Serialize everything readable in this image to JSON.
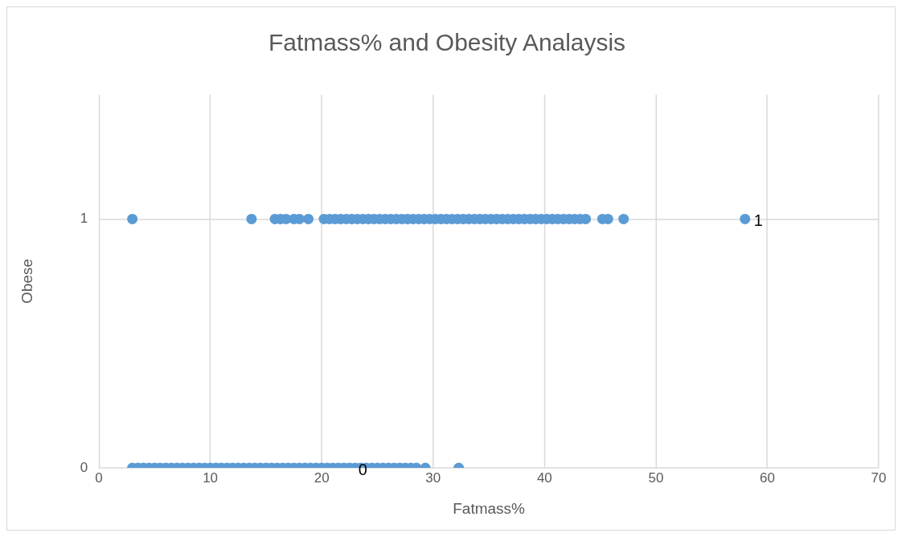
{
  "chart_data": {
    "type": "scatter",
    "title": "Fatmass% and Obesity Analaysis",
    "xlabel": "Fatmass%",
    "ylabel": "Obese",
    "series": [
      {
        "color": "#5b9bd5",
        "x": [
          3,
          13.7,
          15.8,
          16.3,
          16.8,
          17.5,
          18,
          18.8,
          20.2,
          20.7,
          21.2,
          21.7,
          22.2,
          22.7,
          23.2,
          23.7,
          24.2,
          24.7,
          25.2,
          25.7,
          26.2,
          26.7,
          27.2,
          27.7,
          28.2,
          28.7,
          29.2,
          29.7,
          30.2,
          30.7,
          31.2,
          31.7,
          32.2,
          32.7,
          33.2,
          33.7,
          34.2,
          34.7,
          35.2,
          35.7,
          36.2,
          36.7,
          37.2,
          37.7,
          38.2,
          38.7,
          39.2,
          39.7,
          40.2,
          40.7,
          41.2,
          41.7,
          42.2,
          42.7,
          43.2,
          43.7,
          45.2,
          45.7,
          47.1,
          58,
          3,
          3.5,
          4,
          4.5,
          5,
          5.5,
          6,
          6.5,
          7,
          7.5,
          8,
          8.5,
          9,
          9.5,
          10,
          10.5,
          11,
          11.5,
          12,
          12.5,
          13,
          13.5,
          14,
          14.5,
          15,
          15.5,
          16,
          16.5,
          17,
          17.5,
          18,
          18.5,
          19,
          19.5,
          20,
          20.5,
          21,
          21.5,
          22,
          22.5,
          23,
          23.5,
          24,
          24.5,
          25,
          25.5,
          26,
          26.5,
          27,
          27.5,
          28,
          28.5,
          29.3,
          32.3
        ],
        "values": [
          1,
          1,
          1,
          1,
          1,
          1,
          1,
          1,
          1,
          1,
          1,
          1,
          1,
          1,
          1,
          1,
          1,
          1,
          1,
          1,
          1,
          1,
          1,
          1,
          1,
          1,
          1,
          1,
          1,
          1,
          1,
          1,
          1,
          1,
          1,
          1,
          1,
          1,
          1,
          1,
          1,
          1,
          1,
          1,
          1,
          1,
          1,
          1,
          1,
          1,
          1,
          1,
          1,
          1,
          1,
          1,
          1,
          1,
          1,
          1,
          0,
          0,
          0,
          0,
          0,
          0,
          0,
          0,
          0,
          0,
          0,
          0,
          0,
          0,
          0,
          0,
          0,
          0,
          0,
          0,
          0,
          0,
          0,
          0,
          0,
          0,
          0,
          0,
          0,
          0,
          0,
          0,
          0,
          0,
          0,
          0,
          0,
          0,
          0,
          0,
          0,
          0,
          0,
          0,
          0,
          0,
          0,
          0,
          0,
          0,
          0,
          0,
          0,
          0
        ]
      }
    ],
    "xlim": [
      0,
      70
    ],
    "xticks": [
      0,
      10,
      20,
      30,
      40,
      50,
      60,
      70
    ],
    "ylim": [
      0,
      1.5
    ],
    "yticks": [
      0,
      1
    ],
    "annotations": [
      {
        "text": "1",
        "x": 58,
        "y": 1
      },
      {
        "text": "0",
        "x": 22.5,
        "y": 0
      }
    ],
    "grid": true,
    "legend": false,
    "marker": "circle"
  }
}
